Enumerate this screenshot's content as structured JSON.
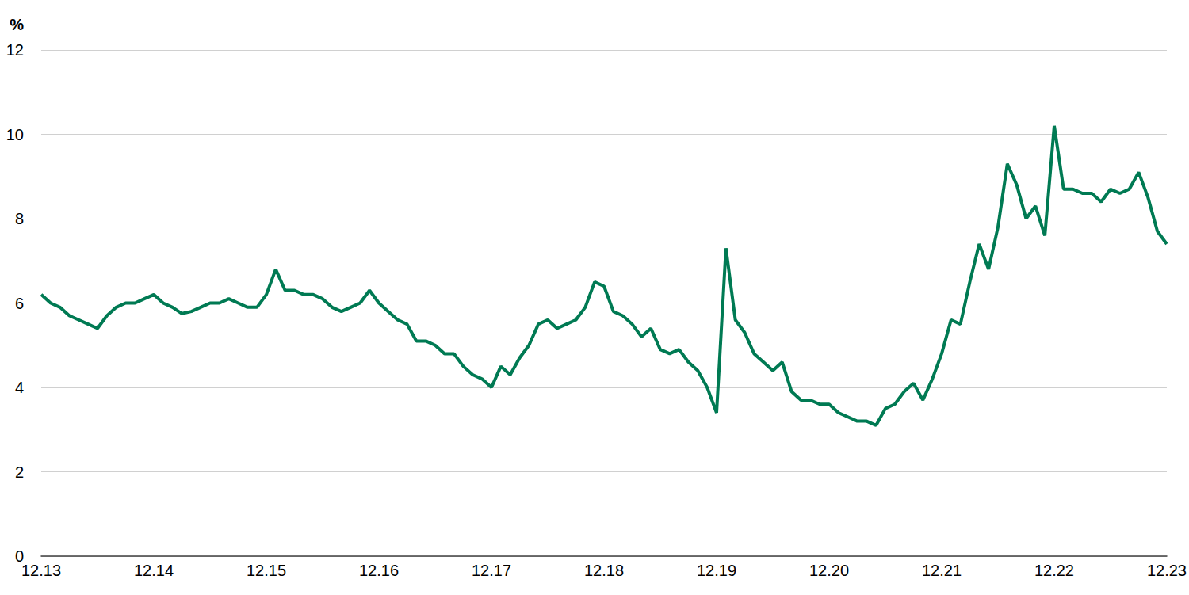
{
  "chart_data": {
    "type": "line",
    "ylabel": "%",
    "color": "#007a53",
    "grid": true,
    "categories": [
      "12.13",
      null,
      null,
      null,
      null,
      null,
      null,
      null,
      null,
      null,
      null,
      null,
      "12.14",
      null,
      null,
      null,
      null,
      null,
      null,
      null,
      null,
      null,
      null,
      null,
      "12.15",
      null,
      null,
      null,
      null,
      null,
      null,
      null,
      null,
      null,
      null,
      null,
      "12.16",
      null,
      null,
      null,
      null,
      null,
      null,
      null,
      null,
      null,
      null,
      null,
      "12.17",
      null,
      null,
      null,
      null,
      null,
      null,
      null,
      null,
      null,
      null,
      null,
      "12.18",
      null,
      null,
      null,
      null,
      null,
      null,
      null,
      null,
      null,
      null,
      null,
      "12.19",
      null,
      null,
      null,
      null,
      null,
      null,
      null,
      null,
      null,
      null,
      null,
      "12.20",
      null,
      null,
      null,
      null,
      null,
      null,
      null,
      null,
      null,
      null,
      null,
      "12.21",
      null,
      null,
      null,
      null,
      null,
      null,
      null,
      null,
      null,
      null,
      null,
      "12.22",
      null,
      null,
      null,
      null,
      null,
      null,
      null,
      null,
      null,
      null,
      null,
      "12.23"
    ],
    "values": [
      6.2,
      6.0,
      5.9,
      5.7,
      5.6,
      5.5,
      5.4,
      5.7,
      5.9,
      6.0,
      6.0,
      6.1,
      6.2,
      6.0,
      5.9,
      5.75,
      5.8,
      5.9,
      6.0,
      6.0,
      6.1,
      6.0,
      5.9,
      5.9,
      6.2,
      6.8,
      6.3,
      6.3,
      6.2,
      6.2,
      6.1,
      5.9,
      5.8,
      5.9,
      6.0,
      6.3,
      6.0,
      5.8,
      5.6,
      5.5,
      5.1,
      5.1,
      5.0,
      4.8,
      4.8,
      4.5,
      4.3,
      4.2,
      4.0,
      4.5,
      4.3,
      4.7,
      5.0,
      5.5,
      5.6,
      5.4,
      5.5,
      5.6,
      5.9,
      6.5,
      6.4,
      5.8,
      5.7,
      5.5,
      5.2,
      5.4,
      4.9,
      4.8,
      4.9,
      4.6,
      4.4,
      4.0,
      3.4,
      7.3,
      5.6,
      5.3,
      4.8,
      4.6,
      4.4,
      4.6,
      3.9,
      3.7,
      3.7,
      3.6,
      3.6,
      3.4,
      3.3,
      3.2,
      3.2,
      3.1,
      3.5,
      3.6,
      3.9,
      4.1,
      3.7,
      4.2,
      4.8,
      5.6,
      5.5,
      6.5,
      7.4,
      6.8,
      7.8,
      9.3,
      8.8,
      8.0,
      8.3,
      7.6,
      10.2,
      8.7,
      8.7,
      8.6,
      8.6,
      8.4,
      8.7,
      8.6,
      8.7,
      9.1,
      8.5,
      7.7,
      7.4
    ],
    "ylim": [
      0,
      12
    ],
    "yticks": [
      0,
      2,
      4,
      6,
      8,
      10,
      12
    ]
  }
}
